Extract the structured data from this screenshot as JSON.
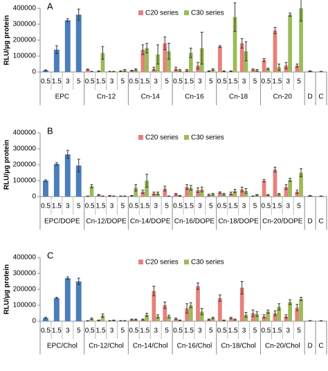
{
  "chart_data": [
    {
      "type": "bar",
      "label": "A",
      "y_label": "RLU/μg protein",
      "ylim": [
        0,
        400000
      ],
      "yticks": [
        0,
        100000,
        200000,
        300000,
        400000
      ],
      "groups": [
        {
          "name": "EPC",
          "categories": [
            "0.5",
            "1.5",
            "3",
            "5"
          ]
        },
        {
          "name": "Cn-12",
          "categories": [
            "0.5",
            "1.5",
            "3",
            "5"
          ]
        },
        {
          "name": "Cn-14",
          "categories": [
            "0.5",
            "1.5",
            "3",
            "5"
          ]
        },
        {
          "name": "Cn-16",
          "categories": [
            "0.5",
            "1.5",
            "3",
            "5"
          ]
        },
        {
          "name": "Cn-18",
          "categories": [
            "0.5",
            "1.5",
            "3",
            "5"
          ]
        },
        {
          "name": "Cn-20",
          "categories": [
            "0.5",
            "1.5",
            "3",
            "5"
          ]
        },
        {
          "name": "D",
          "categories": [
            null
          ]
        },
        {
          "name": "C",
          "categories": [
            null
          ]
        }
      ],
      "series": [
        {
          "color": "#4a7ebb",
          "values": [
            10000,
            140000,
            325000,
            360000,
            null,
            null,
            null,
            null,
            null,
            null,
            null,
            null,
            null,
            null,
            null,
            null,
            null,
            null,
            null,
            null,
            null,
            null,
            null,
            null,
            5000,
            3000
          ],
          "errors": [
            3000,
            25000,
            10000,
            35000,
            null,
            null,
            null,
            null,
            null,
            null,
            null,
            null,
            null,
            null,
            null,
            null,
            null,
            null,
            null,
            null,
            null,
            null,
            null,
            null,
            2000,
            1000
          ]
        },
        {
          "name": "C20 series",
          "color": "#e8807a",
          "values": [
            null,
            null,
            null,
            null,
            15000,
            5000,
            3000,
            5000,
            8000,
            140000,
            20000,
            180000,
            20000,
            10000,
            40000,
            5000,
            160000,
            5000,
            180000,
            15000,
            75000,
            260000,
            40000,
            40000,
            null,
            null
          ],
          "errors": [
            null,
            null,
            null,
            null,
            3000,
            2000,
            1000,
            2000,
            3000,
            30000,
            10000,
            40000,
            10000,
            5000,
            20000,
            2000,
            5000,
            2000,
            30000,
            5000,
            10000,
            20000,
            20000,
            10000,
            null,
            null
          ]
        },
        {
          "name": "C30 series",
          "color": "#9bbb59",
          "values": [
            null,
            null,
            null,
            null,
            3000,
            120000,
            3000,
            10000,
            15000,
            150000,
            110000,
            130000,
            10000,
            120000,
            150000,
            15000,
            5000,
            345000,
            130000,
            10000,
            20000,
            30000,
            360000,
            400000,
            null,
            null
          ],
          "errors": [
            null,
            null,
            null,
            null,
            1000,
            40000,
            1000,
            5000,
            5000,
            30000,
            60000,
            50000,
            5000,
            30000,
            100000,
            5000,
            2000,
            90000,
            60000,
            5000,
            5000,
            20000,
            10000,
            80000,
            null,
            null
          ]
        }
      ]
    },
    {
      "type": "bar",
      "label": "B",
      "y_label": "RLU/μg protein",
      "ylim": [
        0,
        400000
      ],
      "yticks": [
        0,
        100000,
        200000,
        300000,
        400000
      ],
      "groups": [
        {
          "name": "EPC/DOPE",
          "categories": [
            "0.5",
            "1.5",
            "3",
            "5"
          ]
        },
        {
          "name": "Cn-12/DOPE",
          "categories": [
            "0.5",
            "1.5",
            "3",
            "5"
          ]
        },
        {
          "name": "Cn-14/DOPE",
          "categories": [
            "0.5",
            "1.5",
            "3",
            "5"
          ]
        },
        {
          "name": "Cn-16/DOPE",
          "categories": [
            "0.5",
            "1.5",
            "3",
            "5"
          ]
        },
        {
          "name": "Cn-18/DOPE",
          "categories": [
            "0.5",
            "1.5",
            "3",
            "5"
          ]
        },
        {
          "name": "Cn-20/DOPE",
          "categories": [
            "0.5",
            "1.5",
            "3",
            "5"
          ]
        },
        {
          "name": "D",
          "categories": [
            null
          ]
        },
        {
          "name": "C",
          "categories": [
            null
          ]
        }
      ],
      "series": [
        {
          "color": "#4a7ebb",
          "values": [
            100000,
            205000,
            265000,
            195000,
            null,
            null,
            null,
            null,
            null,
            null,
            null,
            null,
            null,
            null,
            null,
            null,
            null,
            null,
            null,
            null,
            null,
            null,
            null,
            null,
            5000,
            3000
          ],
          "errors": [
            5000,
            8000,
            25000,
            40000,
            null,
            null,
            null,
            null,
            null,
            null,
            null,
            null,
            null,
            null,
            null,
            null,
            null,
            null,
            null,
            null,
            null,
            null,
            null,
            null,
            2000,
            1000
          ]
        },
        {
          "name": "C20 series",
          "color": "#e8807a",
          "values": [
            null,
            null,
            null,
            null,
            3000,
            10000,
            5000,
            3000,
            5000,
            30000,
            20000,
            50000,
            15000,
            60000,
            40000,
            10000,
            25000,
            20000,
            45000,
            3000,
            100000,
            170000,
            60000,
            30000,
            null,
            null
          ],
          "errors": [
            null,
            null,
            null,
            null,
            1000,
            3000,
            2000,
            1000,
            2000,
            10000,
            8000,
            15000,
            5000,
            15000,
            15000,
            5000,
            5000,
            8000,
            15000,
            1000,
            8000,
            15000,
            15000,
            10000,
            null,
            null
          ]
        },
        {
          "name": "C30 series",
          "color": "#9bbb59",
          "values": [
            null,
            null,
            null,
            null,
            65000,
            3000,
            3000,
            3000,
            55000,
            100000,
            20000,
            3000,
            5000,
            55000,
            45000,
            15000,
            15000,
            35000,
            35000,
            10000,
            10000,
            15000,
            105000,
            150000,
            null,
            null
          ],
          "errors": [
            null,
            null,
            null,
            null,
            10000,
            1000,
            1000,
            1000,
            20000,
            40000,
            8000,
            1000,
            2000,
            15000,
            15000,
            5000,
            5000,
            10000,
            15000,
            3000,
            3000,
            5000,
            10000,
            25000,
            null,
            null
          ]
        }
      ]
    },
    {
      "type": "bar",
      "label": "C",
      "y_label": "RLU/μg protein",
      "ylim": [
        0,
        400000
      ],
      "yticks": [
        0,
        100000,
        200000,
        300000,
        400000
      ],
      "groups": [
        {
          "name": "EPC/Chol",
          "categories": [
            "0.5",
            "1.5",
            "3",
            "5"
          ]
        },
        {
          "name": "Cn-12/Chol",
          "categories": [
            "0.5",
            "1.5",
            "3",
            "5"
          ]
        },
        {
          "name": "Cn-14/Chol",
          "categories": [
            "0.5",
            "1.5",
            "3",
            "5"
          ]
        },
        {
          "name": "Cn-16/Chol",
          "categories": [
            "0.5",
            "1.5",
            "3",
            "5"
          ]
        },
        {
          "name": "Cn-18/Chol",
          "categories": [
            "0.5",
            "1.5",
            "3",
            "5"
          ]
        },
        {
          "name": "Cn-20/Chol",
          "categories": [
            "0.5",
            "1.5",
            "3",
            "5"
          ]
        },
        {
          "name": "D",
          "categories": [
            null
          ]
        },
        {
          "name": "C",
          "categories": [
            null
          ]
        }
      ],
      "series": [
        {
          "color": "#4a7ebb",
          "values": [
            20000,
            145000,
            270000,
            250000,
            null,
            null,
            null,
            null,
            null,
            null,
            null,
            null,
            null,
            null,
            null,
            null,
            null,
            null,
            null,
            null,
            null,
            null,
            null,
            null,
            3000,
            2000
          ],
          "errors": [
            5000,
            5000,
            8000,
            20000,
            null,
            null,
            null,
            null,
            null,
            null,
            null,
            null,
            null,
            null,
            null,
            null,
            null,
            null,
            null,
            null,
            null,
            null,
            null,
            null,
            1000,
            1000
          ]
        },
        {
          "name": "C20 series",
          "color": "#e8807a",
          "values": [
            null,
            null,
            null,
            null,
            3000,
            5000,
            3000,
            3000,
            10000,
            10000,
            190000,
            100000,
            15000,
            80000,
            220000,
            10000,
            145000,
            20000,
            210000,
            50000,
            30000,
            50000,
            30000,
            85000,
            null,
            null
          ],
          "errors": [
            null,
            null,
            null,
            null,
            1000,
            2000,
            1000,
            1000,
            3000,
            3000,
            30000,
            20000,
            5000,
            30000,
            20000,
            3000,
            20000,
            5000,
            40000,
            20000,
            10000,
            15000,
            10000,
            20000,
            null,
            null
          ]
        },
        {
          "name": "C30 series",
          "color": "#9bbb59",
          "values": [
            null,
            null,
            null,
            null,
            15000,
            35000,
            5000,
            3000,
            10000,
            40000,
            30000,
            30000,
            5000,
            100000,
            60000,
            20000,
            5000,
            10000,
            40000,
            45000,
            60000,
            90000,
            120000,
            140000,
            null,
            null
          ],
          "errors": [
            null,
            null,
            null,
            null,
            5000,
            10000,
            2000,
            1000,
            3000,
            10000,
            10000,
            8000,
            2000,
            15000,
            20000,
            5000,
            2000,
            3000,
            15000,
            15000,
            10000,
            20000,
            15000,
            10000,
            null,
            null
          ]
        }
      ]
    }
  ]
}
